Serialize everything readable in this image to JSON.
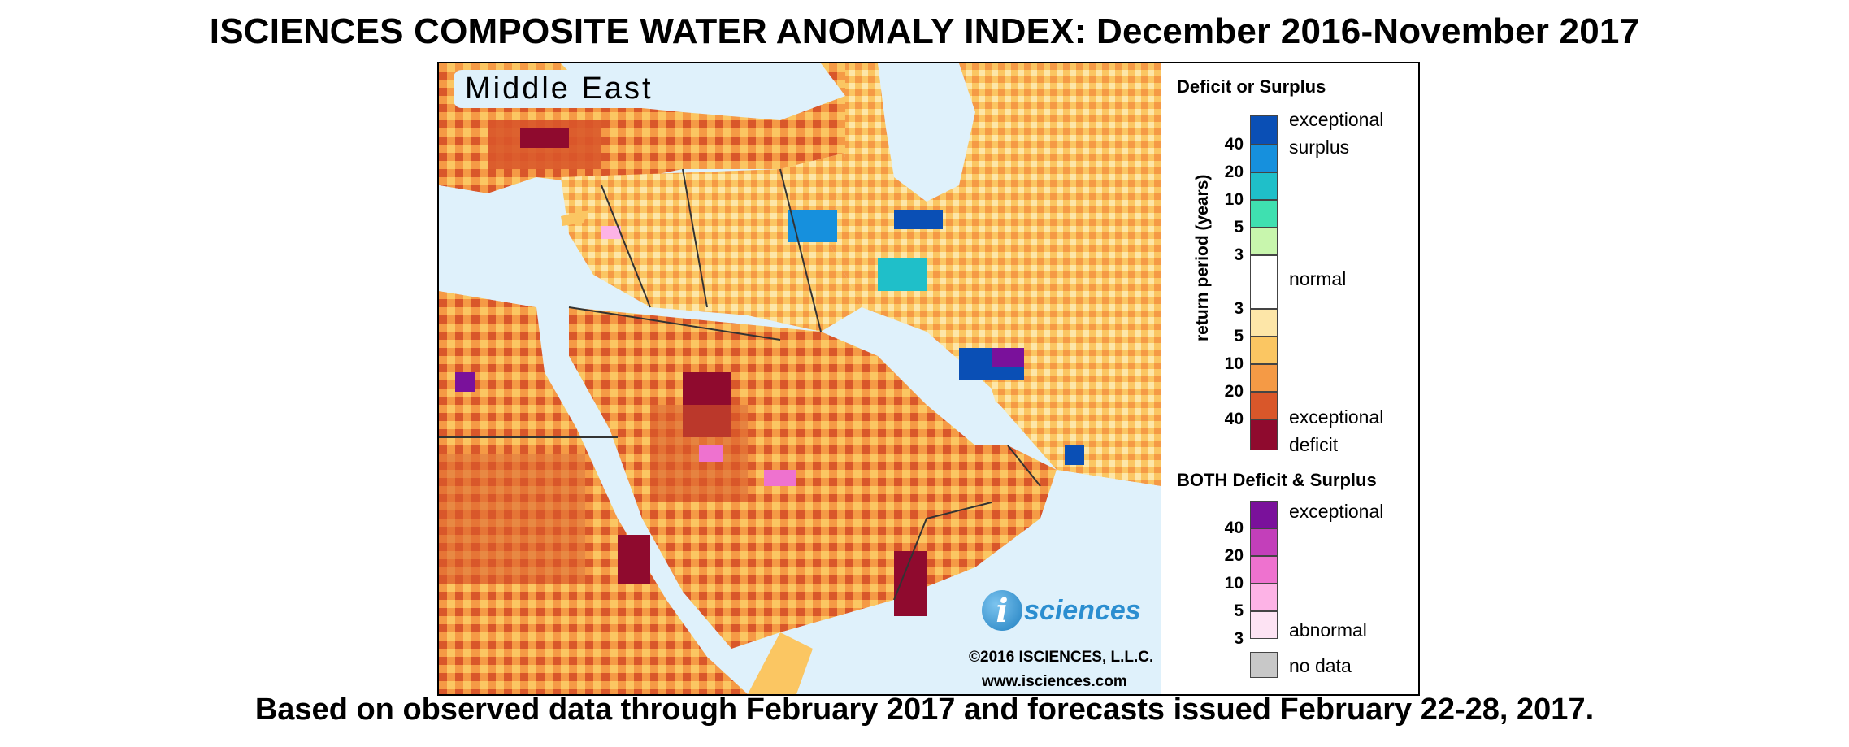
{
  "title": "ISCIENCES COMPOSITE WATER ANOMALY INDEX: December 2016-November 2017",
  "subtitle": "Based on observed data through February 2017 and forecasts issued February 22-28, 2017.",
  "map": {
    "region_label": "Middle East",
    "logo_letter": "i",
    "logo_text": "sciences",
    "copyright": "©2016 ISCIENCES, L.L.C.",
    "website": "www.isciences.com"
  },
  "legend": {
    "deficit_surplus_heading": "Deficit or Surplus",
    "axis_label": "return period (years)",
    "surplus_ticks": [
      "40",
      "20",
      "10",
      "5",
      "3"
    ],
    "deficit_ticks": [
      "3",
      "5",
      "10",
      "20",
      "40"
    ],
    "exceptional_surplus_label": "exceptional surplus",
    "normal_label": "normal",
    "exceptional_deficit_label": "exceptional deficit",
    "both_heading": "BOTH Deficit & Surplus",
    "both_ticks": [
      "40",
      "20",
      "10",
      "5",
      "3"
    ],
    "both_exceptional_label": "exceptional",
    "both_abnormal_label": "abnormal",
    "no_data_label": "no data",
    "colors": {
      "surplus": [
        "#0a4fb5",
        "#1690dd",
        "#1fbfc9",
        "#3fe0b0",
        "#c8f6ad"
      ],
      "normal": "#ffffff",
      "deficit": [
        "#fde6a8",
        "#fbc662",
        "#f59a45",
        "#d9572a",
        "#8f0a2e"
      ],
      "both": [
        "#7a119b",
        "#c33fba",
        "#ee72cf",
        "#fdb3e6",
        "#fde3f3"
      ],
      "no_data": "#c8c8c8",
      "water": "#dff1fb"
    }
  }
}
